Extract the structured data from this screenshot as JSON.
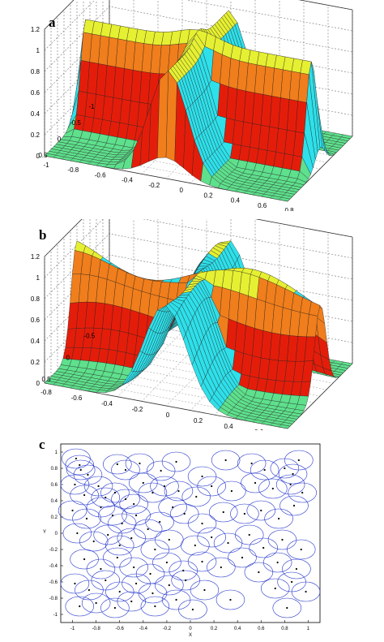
{
  "panels": {
    "a": {
      "letter": "a"
    },
    "b": {
      "letter": "b"
    },
    "c": {
      "letter": "c"
    }
  },
  "colors": {
    "cyan": "#2ee0ea",
    "orange": "#f07e1c",
    "red": "#e41d0a",
    "yellow": "#e6f032",
    "green": "#5ee08c",
    "circle": "#2233cc"
  },
  "chart_data": [
    {
      "id": "a",
      "type": "surface3d",
      "z_ticks": [
        "0",
        "0.2",
        "0.4",
        "0.6",
        "0.8",
        "1",
        "1.2"
      ],
      "left_ticks": [
        "0.5",
        "0",
        "-0.5",
        "-1"
      ],
      "bottom_ticks": [
        "-1",
        "-0.8",
        "-0.6",
        "-0.4",
        "-0.2",
        "0",
        "0.2",
        "0.4",
        "0.6",
        "0.8"
      ],
      "zlim": [
        0,
        1.2
      ],
      "grid": true
    },
    {
      "id": "b",
      "type": "surface3d",
      "z_ticks": [
        "0",
        "0.2",
        "0.4",
        "0.6",
        "0.8",
        "1",
        "1.2"
      ],
      "left_ticks": [
        "0.5",
        "0",
        "-0.5"
      ],
      "bottom_ticks": [
        "-0.8",
        "-0.6",
        "-0.4",
        "-0.2",
        "0",
        "0.2",
        "0.4",
        "0.6",
        "0.8"
      ],
      "zlim": [
        0,
        1.2
      ],
      "grid": true
    },
    {
      "id": "c",
      "type": "scatter",
      "xlabel": "X",
      "ylabel": "Y",
      "xlim": [
        -1.1,
        1.1
      ],
      "ylim": [
        -1.1,
        1.1
      ],
      "x_ticks": [
        "-1",
        "-0.8",
        "-0.6",
        "-0.4",
        "-0.2",
        "0",
        "0.2",
        "0.4",
        "0.6",
        "0.8",
        "1"
      ],
      "y_ticks": [
        "1",
        "0.8",
        "0.6",
        "0.4",
        "0.2",
        "0",
        "-0.2",
        "-0.4",
        "-0.6",
        "-0.8",
        "-1"
      ],
      "circle_radius": 0.12,
      "points": [
        [
          -0.97,
          0.92
        ],
        [
          -0.94,
          0.84
        ],
        [
          -0.93,
          0.78
        ],
        [
          -0.87,
          0.72
        ],
        [
          -0.62,
          0.85
        ],
        [
          -0.55,
          0.78
        ],
        [
          -0.43,
          0.86
        ],
        [
          -0.25,
          0.77
        ],
        [
          -0.12,
          0.88
        ],
        [
          0.1,
          0.7
        ],
        [
          0.18,
          0.58
        ],
        [
          0.3,
          0.9
        ],
        [
          0.52,
          0.86
        ],
        [
          0.63,
          0.78
        ],
        [
          0.8,
          0.8
        ],
        [
          0.87,
          0.73
        ],
        [
          0.92,
          0.9
        ],
        [
          -0.98,
          0.6
        ],
        [
          -0.9,
          0.47
        ],
        [
          -0.78,
          0.58
        ],
        [
          -0.72,
          0.44
        ],
        [
          -0.64,
          0.5
        ],
        [
          -0.55,
          0.42
        ],
        [
          -0.48,
          0.36
        ],
        [
          -0.4,
          0.62
        ],
        [
          -0.32,
          0.5
        ],
        [
          -0.22,
          0.58
        ],
        [
          -0.1,
          0.52
        ],
        [
          0.05,
          0.45
        ],
        [
          0.35,
          0.52
        ],
        [
          0.55,
          0.62
        ],
        [
          0.7,
          0.55
        ],
        [
          0.85,
          0.6
        ],
        [
          0.95,
          0.5
        ],
        [
          -1.0,
          0.28
        ],
        [
          -0.88,
          0.18
        ],
        [
          -0.76,
          0.32
        ],
        [
          -0.66,
          0.22
        ],
        [
          -0.58,
          0.12
        ],
        [
          -0.46,
          0.22
        ],
        [
          -0.36,
          0.05
        ],
        [
          -0.26,
          0.14
        ],
        [
          -0.15,
          0.32
        ],
        [
          -0.05,
          0.24
        ],
        [
          0.1,
          0.12
        ],
        [
          0.28,
          0.26
        ],
        [
          0.46,
          0.24
        ],
        [
          0.6,
          0.28
        ],
        [
          0.75,
          0.18
        ],
        [
          0.88,
          0.34
        ],
        [
          -0.96,
          0.0
        ],
        [
          -0.82,
          -0.1
        ],
        [
          -0.7,
          -0.02
        ],
        [
          -0.6,
          -0.15
        ],
        [
          -0.5,
          -0.06
        ],
        [
          -0.3,
          -0.2
        ],
        [
          -0.18,
          -0.08
        ],
        [
          0.04,
          -0.15
        ],
        [
          0.18,
          -0.05
        ],
        [
          0.32,
          -0.12
        ],
        [
          0.5,
          -0.02
        ],
        [
          0.62,
          -0.18
        ],
        [
          0.78,
          -0.08
        ],
        [
          0.94,
          -0.2
        ],
        [
          -0.9,
          -0.32
        ],
        [
          -0.76,
          -0.44
        ],
        [
          -0.62,
          -0.3
        ],
        [
          -0.48,
          -0.42
        ],
        [
          -0.34,
          -0.5
        ],
        [
          -0.2,
          -0.36
        ],
        [
          -0.06,
          -0.46
        ],
        [
          0.1,
          -0.35
        ],
        [
          0.26,
          -0.42
        ],
        [
          0.44,
          -0.3
        ],
        [
          0.58,
          -0.48
        ],
        [
          0.74,
          -0.36
        ],
        [
          0.9,
          -0.44
        ],
        [
          -0.98,
          -0.62
        ],
        [
          -0.86,
          -0.7
        ],
        [
          -0.72,
          -0.58
        ],
        [
          -0.6,
          -0.72
        ],
        [
          -0.46,
          -0.62
        ],
        [
          -0.32,
          -0.74
        ],
        [
          -0.18,
          -0.64
        ],
        [
          -0.04,
          -0.58
        ],
        [
          0.12,
          -0.7
        ],
        [
          0.34,
          -0.82
        ],
        [
          0.72,
          -0.68
        ],
        [
          0.86,
          -0.6
        ],
        [
          0.98,
          -0.72
        ],
        [
          -0.94,
          -0.9
        ],
        [
          -0.8,
          -0.86
        ],
        [
          -0.64,
          -0.92
        ],
        [
          -0.5,
          -0.84
        ],
        [
          -0.3,
          -0.9
        ],
        [
          -0.12,
          -0.82
        ],
        [
          0.02,
          -0.94
        ],
        [
          0.82,
          -0.92
        ]
      ]
    }
  ]
}
